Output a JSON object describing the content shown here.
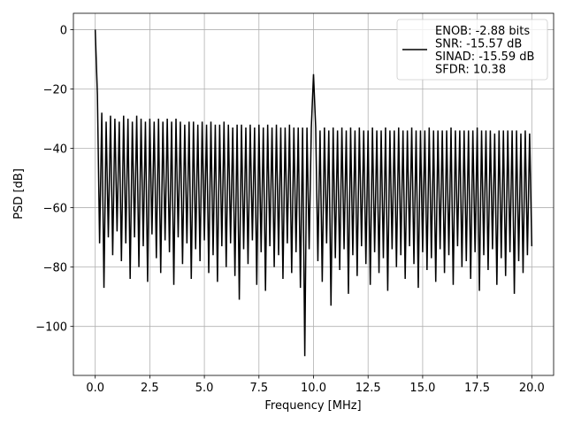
{
  "chart_data": {
    "type": "line",
    "xlabel": "Frequency [MHz]",
    "ylabel": "PSD [dB]",
    "x": [
      0,
      0.1,
      0.2,
      0.3,
      0.4,
      0.5,
      0.6,
      0.7,
      0.8,
      0.9,
      1,
      1.1,
      1.2,
      1.3,
      1.4,
      1.5,
      1.6,
      1.7,
      1.8,
      1.9,
      2,
      2.1,
      2.2,
      2.3,
      2.4,
      2.5,
      2.6,
      2.7,
      2.8,
      2.9,
      3,
      3.1,
      3.2,
      3.3,
      3.4,
      3.5,
      3.6,
      3.7,
      3.8,
      3.9,
      4,
      4.1,
      4.2,
      4.3,
      4.4,
      4.5,
      4.6,
      4.7,
      4.8,
      4.9,
      5,
      5.1,
      5.2,
      5.3,
      5.4,
      5.5,
      5.6,
      5.7,
      5.8,
      5.9,
      6,
      6.1,
      6.2,
      6.3,
      6.4,
      6.5,
      6.6,
      6.7,
      6.8,
      6.9,
      7,
      7.1,
      7.2,
      7.3,
      7.4,
      7.5,
      7.6,
      7.7,
      7.8,
      7.9,
      8,
      8.1,
      8.2,
      8.3,
      8.4,
      8.5,
      8.6,
      8.7,
      8.8,
      8.9,
      9,
      9.1,
      9.2,
      9.3,
      9.4,
      9.5,
      9.6,
      9.7,
      9.8,
      9.9,
      10,
      10.1,
      10.2,
      10.3,
      10.4,
      10.5,
      10.6,
      10.7,
      10.8,
      10.9,
      11,
      11.1,
      11.2,
      11.3,
      11.4,
      11.5,
      11.6,
      11.7,
      11.8,
      11.9,
      12,
      12.1,
      12.2,
      12.3,
      12.4,
      12.5,
      12.6,
      12.7,
      12.8,
      12.9,
      13,
      13.1,
      13.2,
      13.3,
      13.4,
      13.5,
      13.6,
      13.7,
      13.8,
      13.9,
      14,
      14.1,
      14.2,
      14.3,
      14.4,
      14.5,
      14.6,
      14.7,
      14.8,
      14.9,
      15,
      15.1,
      15.2,
      15.3,
      15.4,
      15.5,
      15.6,
      15.7,
      15.8,
      15.9,
      16,
      16.1,
      16.2,
      16.3,
      16.4,
      16.5,
      16.6,
      16.7,
      16.8,
      16.9,
      17,
      17.1,
      17.2,
      17.3,
      17.4,
      17.5,
      17.6,
      17.7,
      17.8,
      17.9,
      18,
      18.1,
      18.2,
      18.3,
      18.4,
      18.5,
      18.6,
      18.7,
      18.8,
      18.9,
      19,
      19.1,
      19.2,
      19.3,
      19.4,
      19.5,
      19.6,
      19.7,
      19.8,
      19.9,
      20
    ],
    "series": [
      {
        "name": "ENOB: -2.88 bits\nSNR: -15.57 dB\nSINAD: -15.59 dB\nSFDR: 10.38",
        "color": "#000000",
        "values": [
          0,
          -22,
          -72,
          -28,
          -87,
          -31,
          -70,
          -29,
          -76,
          -30,
          -68,
          -31,
          -78,
          -29,
          -72,
          -30,
          -84,
          -31,
          -70,
          -29,
          -80,
          -30,
          -73,
          -31,
          -85,
          -30,
          -69,
          -31,
          -77,
          -30,
          -82,
          -31,
          -71,
          -30,
          -75,
          -31,
          -86,
          -30,
          -70,
          -31,
          -79,
          -32,
          -72,
          -31,
          -84,
          -31,
          -74,
          -32,
          -78,
          -31,
          -71,
          -32,
          -82,
          -31,
          -76,
          -32,
          -85,
          -32,
          -73,
          -31,
          -80,
          -32,
          -72,
          -33,
          -83,
          -32,
          -91,
          -32,
          -74,
          -33,
          -79,
          -32,
          -71,
          -33,
          -86,
          -32,
          -75,
          -33,
          -88,
          -32,
          -73,
          -33,
          -80,
          -32,
          -76,
          -33,
          -84,
          -33,
          -72,
          -32,
          -82,
          -33,
          -75,
          -33,
          -87,
          -33,
          -110,
          -33,
          -74,
          -33,
          -15,
          -33,
          -78,
          -34,
          -85,
          -33,
          -72,
          -34,
          -93,
          -33,
          -77,
          -34,
          -81,
          -33,
          -74,
          -34,
          -89,
          -33,
          -76,
          -34,
          -83,
          -33,
          -73,
          -34,
          -79,
          -34,
          -86,
          -33,
          -75,
          -34,
          -82,
          -34,
          -77,
          -33,
          -88,
          -34,
          -74,
          -34,
          -80,
          -33,
          -76,
          -34,
          -84,
          -34,
          -73,
          -33,
          -79,
          -34,
          -87,
          -34,
          -75,
          -34,
          -81,
          -33,
          -77,
          -34,
          -85,
          -34,
          -74,
          -34,
          -82,
          -34,
          -76,
          -33,
          -86,
          -34,
          -73,
          -34,
          -80,
          -34,
          -78,
          -34,
          -84,
          -34,
          -75,
          -33,
          -88,
          -34,
          -76,
          -34,
          -81,
          -34,
          -74,
          -35,
          -86,
          -34,
          -77,
          -34,
          -83,
          -34,
          -75,
          -34,
          -89,
          -34,
          -78,
          -35,
          -82,
          -34,
          -76,
          -35,
          -73
        ]
      }
    ],
    "xlim": [
      -1,
      21
    ],
    "xticks": [
      {
        "value": 0,
        "label": "0.0"
      },
      {
        "value": 2.5,
        "label": "2.5"
      },
      {
        "value": 5,
        "label": "5.0"
      },
      {
        "value": 7.5,
        "label": "7.5"
      },
      {
        "value": 10,
        "label": "10.0"
      },
      {
        "value": 12.5,
        "label": "12.5"
      },
      {
        "value": 15,
        "label": "15.0"
      },
      {
        "value": 17.5,
        "label": "17.5"
      },
      {
        "value": 20,
        "label": "20.0"
      }
    ],
    "ylim": [
      -116.5,
      5.5
    ],
    "yticks": [
      {
        "value": -100,
        "label": "−100"
      },
      {
        "value": -80,
        "label": "−80"
      },
      {
        "value": -60,
        "label": "−60"
      },
      {
        "value": -40,
        "label": "−40"
      },
      {
        "value": -20,
        "label": "−20"
      },
      {
        "value": 0,
        "label": "0"
      }
    ],
    "grid": true,
    "legend": "upper right"
  }
}
